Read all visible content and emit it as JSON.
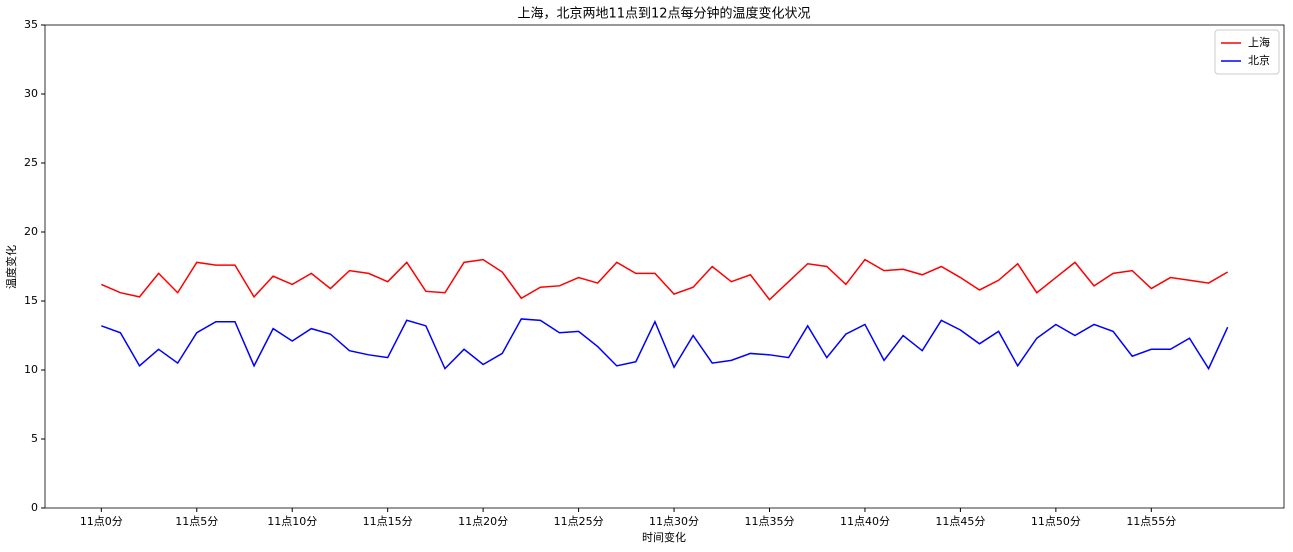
{
  "chart_data": {
    "type": "line",
    "title": "上海，北京两地11点到12点每分钟的温度变化状况",
    "x_label": "时间变化",
    "y_label": "温度变化",
    "x": [
      0,
      1,
      2,
      3,
      4,
      5,
      6,
      7,
      8,
      9,
      10,
      11,
      12,
      13,
      14,
      15,
      16,
      17,
      18,
      19,
      20,
      21,
      22,
      23,
      24,
      25,
      26,
      27,
      28,
      29,
      30,
      31,
      32,
      33,
      34,
      35,
      36,
      37,
      38,
      39,
      40,
      41,
      42,
      43,
      44,
      45,
      46,
      47,
      48,
      49,
      50,
      51,
      52,
      53,
      54,
      55,
      56,
      57,
      58,
      59
    ],
    "xlim": [
      -2.95,
      61.95
    ],
    "xticks": [
      {
        "value": 0,
        "label": "11点0分"
      },
      {
        "value": 5,
        "label": "11点5分"
      },
      {
        "value": 10,
        "label": "11点10分"
      },
      {
        "value": 15,
        "label": "11点15分"
      },
      {
        "value": 20,
        "label": "11点20分"
      },
      {
        "value": 25,
        "label": "11点25分"
      },
      {
        "value": 30,
        "label": "11点30分"
      },
      {
        "value": 35,
        "label": "11点35分"
      },
      {
        "value": 40,
        "label": "11点40分"
      },
      {
        "value": 45,
        "label": "11点45分"
      },
      {
        "value": 50,
        "label": "11点50分"
      },
      {
        "value": 55,
        "label": "11点55分"
      }
    ],
    "ylim": [
      0,
      35
    ],
    "yticks": [
      0,
      5,
      10,
      15,
      20,
      25,
      30,
      35
    ],
    "legend": "upper right",
    "series": [
      {
        "name": "上海",
        "color": "#ff0000",
        "values": [
          16.2,
          15.6,
          15.3,
          17.0,
          15.6,
          17.8,
          17.6,
          17.6,
          15.3,
          16.8,
          16.2,
          17.0,
          15.9,
          17.2,
          17.0,
          16.4,
          17.8,
          15.7,
          15.6,
          17.8,
          18.0,
          17.1,
          15.2,
          16.0,
          16.1,
          16.7,
          16.3,
          17.8,
          17.0,
          17.0,
          15.5,
          16.0,
          17.5,
          16.4,
          16.9,
          15.1,
          16.4,
          17.7,
          17.5,
          16.2,
          18.0,
          17.2,
          17.3,
          16.9,
          17.5,
          16.7,
          15.8,
          16.5,
          17.7,
          15.6,
          16.7,
          17.8,
          16.1,
          17.0,
          17.2,
          15.9,
          16.7,
          16.5,
          16.3,
          17.1
        ]
      },
      {
        "name": "北京",
        "color": "#0000ff",
        "values": [
          13.2,
          12.7,
          10.3,
          11.5,
          10.5,
          12.7,
          13.5,
          13.5,
          10.3,
          13.0,
          12.1,
          13.0,
          12.6,
          11.4,
          11.1,
          10.9,
          13.6,
          13.2,
          10.1,
          11.5,
          10.4,
          11.2,
          13.7,
          13.6,
          12.7,
          12.8,
          11.7,
          10.3,
          10.6,
          13.5,
          10.2,
          12.5,
          10.5,
          10.7,
          11.2,
          11.1,
          10.9,
          13.2,
          10.9,
          12.6,
          13.3,
          10.7,
          12.5,
          11.4,
          13.6,
          12.9,
          11.9,
          12.8,
          10.3,
          12.3,
          13.3,
          12.5,
          13.3,
          12.8,
          11.0,
          11.5,
          11.5,
          12.3,
          10.1,
          13.1
        ]
      }
    ]
  }
}
